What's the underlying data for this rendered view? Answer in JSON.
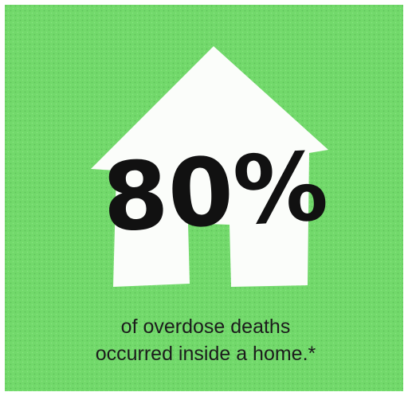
{
  "stat": "80%",
  "caption": [
    "of overdose deaths",
    "occurred inside a home.*"
  ]
}
